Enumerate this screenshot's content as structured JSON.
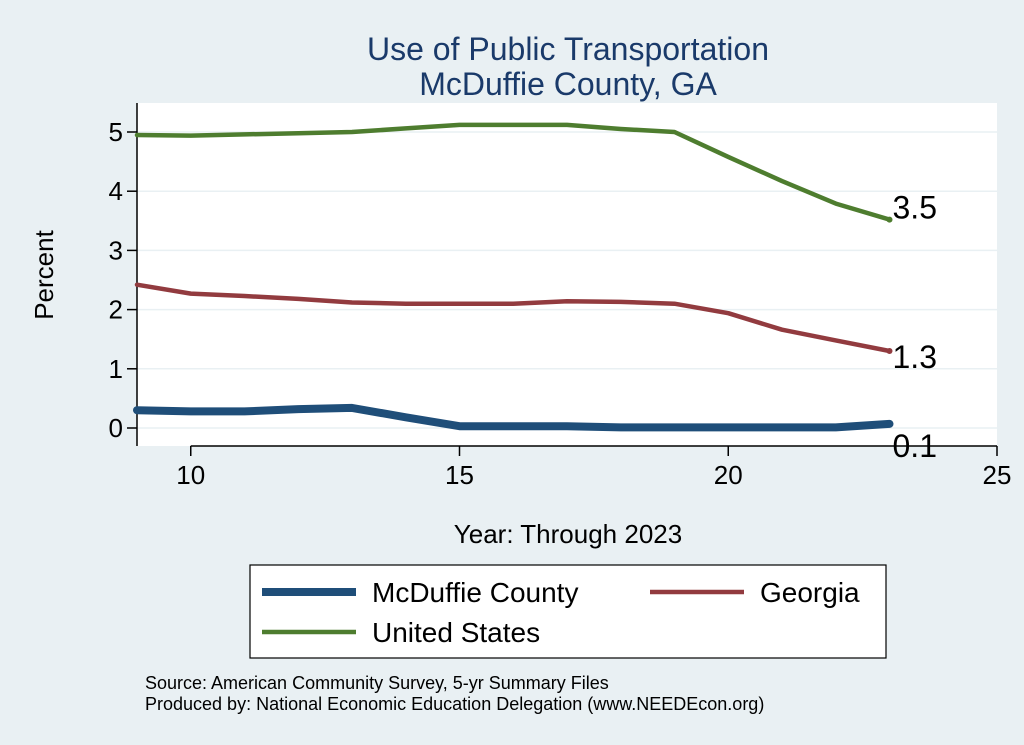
{
  "chart_data": {
    "type": "line",
    "title": "Use of Public Transportation",
    "subtitle": "McDuffie County, GA",
    "xlabel": "Year: Through 2023",
    "ylabel": "Percent",
    "xlim": [
      9,
      25
    ],
    "ylim": [
      -0.3,
      5.4
    ],
    "xticks": [
      10,
      15,
      20,
      25
    ],
    "yticks": [
      0,
      1,
      2,
      3,
      4,
      5
    ],
    "grid": true,
    "legend_position": "bottom",
    "series": [
      {
        "name": "McDuffie County",
        "color": "#1f4e79",
        "x": [
          9,
          10,
          11,
          12,
          13,
          14,
          15,
          16,
          17,
          18,
          19,
          20,
          21,
          22,
          23
        ],
        "values": [
          0.3,
          0.28,
          0.28,
          0.32,
          0.34,
          0.18,
          0.03,
          0.03,
          0.03,
          0.01,
          0.01,
          0.01,
          0.01,
          0.01,
          0.07
        ],
        "end_label": "0.1"
      },
      {
        "name": "Georgia",
        "color": "#923b3f",
        "x": [
          9,
          10,
          11,
          12,
          13,
          14,
          15,
          16,
          17,
          18,
          19,
          20,
          21,
          22,
          23
        ],
        "values": [
          2.42,
          2.27,
          2.23,
          2.18,
          2.12,
          2.1,
          2.1,
          2.1,
          2.14,
          2.13,
          2.1,
          1.94,
          1.66,
          1.48,
          1.3
        ],
        "end_label": "1.3"
      },
      {
        "name": "United States",
        "color": "#4e7d2f",
        "x": [
          9,
          10,
          11,
          12,
          13,
          14,
          15,
          16,
          17,
          18,
          19,
          20,
          21,
          22,
          23
        ],
        "values": [
          4.95,
          4.94,
          4.96,
          4.98,
          5.0,
          5.06,
          5.12,
          5.12,
          5.12,
          5.05,
          5.0,
          4.58,
          4.17,
          3.79,
          3.52
        ],
        "end_label": "3.5"
      }
    ]
  },
  "footer": {
    "source": "Source: American Community Survey, 5-yr Summary Files",
    "produced_by": "Produced by: National Economic Education Delegation (www.NEEDEcon.org)"
  }
}
